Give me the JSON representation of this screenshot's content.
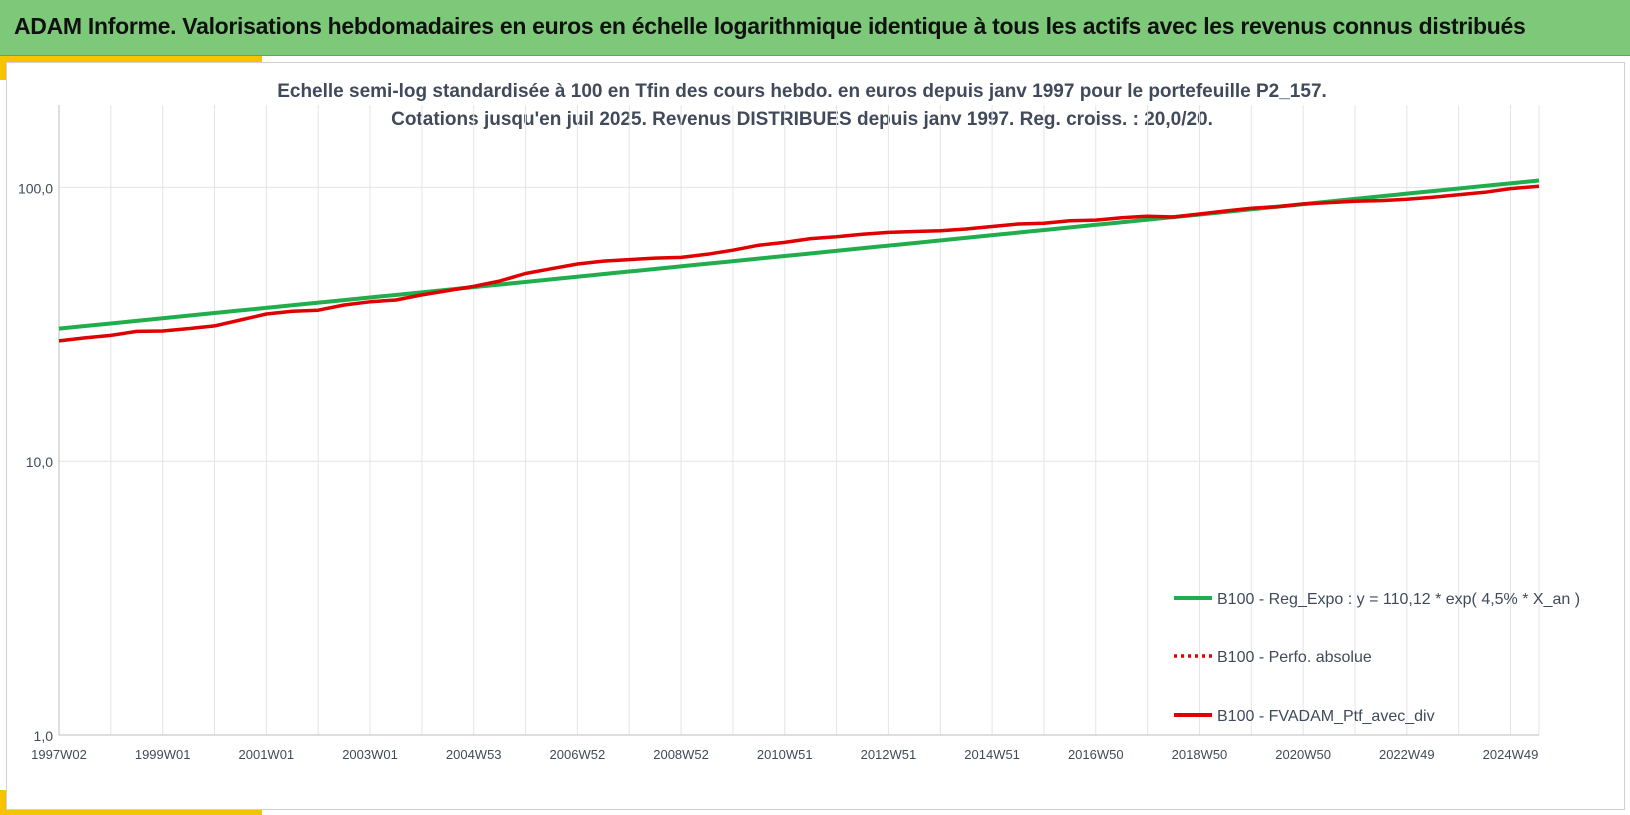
{
  "header": {
    "title": "ADAM Informe. Valorisations hebdomadaires en euros en échelle logarithmique identique à tous les actifs avec les revenus connus distribués"
  },
  "colors": {
    "header_bg": "#7ec87a",
    "accent": "#f5c300",
    "regression": "#1fae4b",
    "portfolio": "#e00000",
    "grid": "#e4e4e4",
    "text": "#404a5a"
  },
  "chart_data": {
    "type": "line",
    "title_line1": "Echelle semi-log standardisée  à 100 en Tfin des cours hebdo.  en euros depuis janv 1997 pour le portefeuille P2_157.",
    "title_line2": "Cotations jusqu'en juil 2025. Revenus DISTRIBUES depuis janv 1997. Reg. croiss. : 20,0/20.",
    "y_scale": "log",
    "ylim": [
      1,
      200
    ],
    "xlim": [
      1997.0,
      2025.55
    ],
    "y_ticks": [
      {
        "value": 1,
        "label": "1,0"
      },
      {
        "value": 10,
        "label": "10,0"
      },
      {
        "value": 100,
        "label": "100,0"
      }
    ],
    "x_ticks": [
      {
        "value": 1997.0,
        "label": "1997W02"
      },
      {
        "value": 1999.0,
        "label": "1999W01"
      },
      {
        "value": 2001.0,
        "label": "2001W01"
      },
      {
        "value": 2003.0,
        "label": "2003W01"
      },
      {
        "value": 2005.0,
        "label": "2004W53"
      },
      {
        "value": 2007.0,
        "label": "2006W52"
      },
      {
        "value": 2009.0,
        "label": "2008W52"
      },
      {
        "value": 2011.0,
        "label": "2010W51"
      },
      {
        "value": 2013.0,
        "label": "2012W51"
      },
      {
        "value": 2015.0,
        "label": "2014W51"
      },
      {
        "value": 2017.0,
        "label": "2016W50"
      },
      {
        "value": 2019.0,
        "label": "2018W50"
      },
      {
        "value": 2021.0,
        "label": "2020W50"
      },
      {
        "value": 2023.0,
        "label": "2022W49"
      },
      {
        "value": 2025.0,
        "label": "2024W49"
      }
    ],
    "grid": true,
    "legend_position": "bottom-right",
    "series": [
      {
        "name": "B100 - Reg_Expo : y = 110,12 * exp( 4,5% *  X_an )",
        "style": "solid",
        "color": "#1fae4b",
        "x": [
          1997.0,
          2025.55
        ],
        "y": [
          30.5,
          106.0
        ]
      },
      {
        "name": "B100 - Perfo. absolue",
        "style": "dotted",
        "color": "#e00000",
        "x": [],
        "y": []
      },
      {
        "name": "B100 - FVADAM_Ptf_avec_div",
        "style": "solid",
        "color": "#e00000",
        "x": [
          1997.0,
          1997.5,
          1998.0,
          1998.5,
          1999.0,
          1999.5,
          2000.0,
          2000.5,
          2001.0,
          2001.5,
          2002.0,
          2002.5,
          2003.0,
          2003.5,
          2004.0,
          2004.5,
          2005.0,
          2005.5,
          2006.0,
          2006.5,
          2007.0,
          2007.5,
          2008.0,
          2008.5,
          2009.0,
          2009.5,
          2010.0,
          2010.5,
          2011.0,
          2011.5,
          2012.0,
          2012.5,
          2013.0,
          2013.5,
          2014.0,
          2014.5,
          2015.0,
          2015.5,
          2016.0,
          2016.5,
          2017.0,
          2017.5,
          2018.0,
          2018.5,
          2019.0,
          2019.5,
          2020.0,
          2020.5,
          2021.0,
          2021.5,
          2022.0,
          2022.5,
          2023.0,
          2023.5,
          2024.0,
          2024.5,
          2025.0,
          2025.55
        ],
        "y": [
          27.5,
          28.2,
          28.8,
          29.8,
          29.9,
          30.5,
          31.2,
          32.8,
          34.5,
          35.3,
          35.6,
          37.2,
          38.2,
          38.8,
          40.5,
          42.0,
          43.5,
          45.5,
          48.5,
          50.5,
          52.5,
          53.8,
          54.5,
          55.2,
          55.5,
          57.0,
          59.0,
          61.5,
          63.0,
          65.0,
          66.0,
          67.5,
          68.5,
          69.0,
          69.5,
          70.5,
          72.0,
          73.5,
          74.0,
          75.5,
          76.0,
          77.5,
          78.5,
          78.0,
          80.0,
          82.0,
          84.0,
          85.0,
          87.0,
          88.0,
          89.0,
          89.5,
          90.5,
          92.0,
          94.0,
          96.0,
          99.0,
          101.0
        ]
      }
    ]
  }
}
